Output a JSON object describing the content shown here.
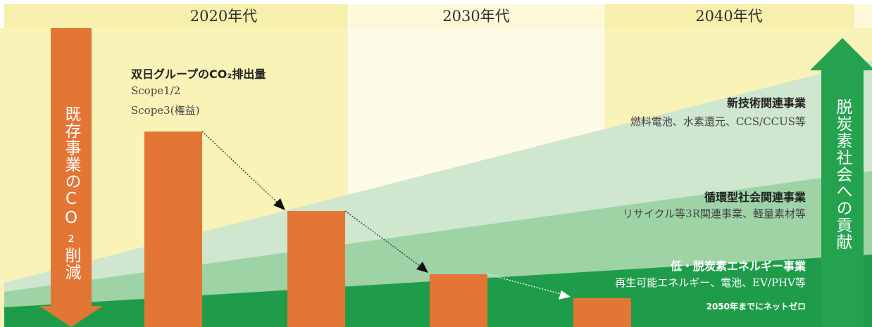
{
  "header": {
    "decades": [
      "2020年代",
      "2030年代",
      "2040年代"
    ]
  },
  "left_arrow": {
    "label": "既存事業のCO₂削減"
  },
  "right_arrow": {
    "label": "脱炭素社会への貢献"
  },
  "emissions": {
    "title": "双日グループのCO₂排出量",
    "scope12": "Scope1/2",
    "scope3": "Scope3(権益)"
  },
  "bands": [
    {
      "title": "新技術関連事業",
      "desc": "燃料電池、水素還元、CCS/CCUS等"
    },
    {
      "title": "循環型社会関連事業",
      "desc": "リサイクル等3R関連事業、軽量素材等"
    },
    {
      "title": "低・脱炭素エネルギー事業",
      "desc": "再生可能エネルギー、電池、EV/PHV等",
      "note": "2050年までにネットゼロ"
    }
  ],
  "colors": {
    "orange": "#e37634",
    "green": "#1fa14c",
    "light_yellow": "#fbf4bd",
    "pale_yellow": "#fdfbe6",
    "header_yellow": "#f8f1b0",
    "band_pale": "#cfe6cf",
    "band_mid": "#9ed3a6",
    "band_dark": "#1f9c4a"
  }
}
